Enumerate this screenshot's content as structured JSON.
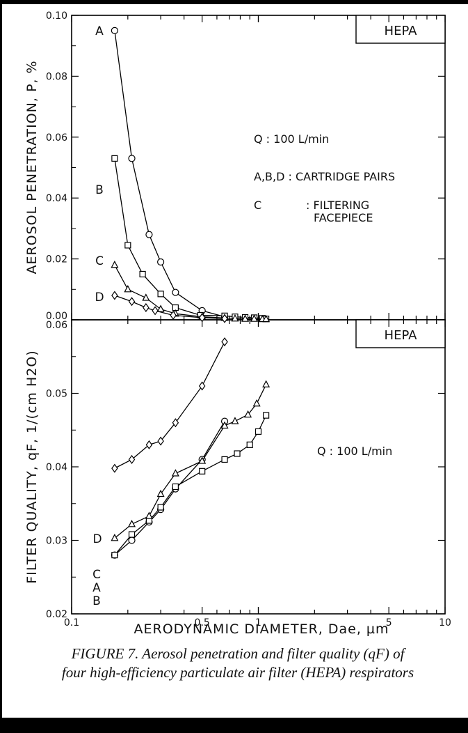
{
  "chart_data": [
    {
      "type": "line",
      "box_label": "HEPA",
      "ylabel": "AEROSOL PENETRATION, P, %",
      "xscale": "log",
      "xlim": [
        0.1,
        10
      ],
      "ylim": [
        0,
        0.1
      ],
      "yticks": [
        "0.00",
        "0.02",
        "0.04",
        "0.06",
        "0.08",
        "0.10"
      ],
      "annotations": [
        "Q : 100 L/min",
        "A,B,D : CARTRIDGE PAIRS",
        "C",
        ": FILTERING",
        "FACEPIECE"
      ],
      "series": [
        {
          "name": "A",
          "marker": "circle",
          "x": [
            0.17,
            0.21,
            0.26,
            0.3,
            0.36,
            0.5,
            0.66
          ],
          "y": [
            0.095,
            0.053,
            0.028,
            0.019,
            0.009,
            0.003,
            0.001
          ]
        },
        {
          "name": "B",
          "marker": "square",
          "x": [
            0.17,
            0.2,
            0.24,
            0.3,
            0.36,
            0.49,
            0.66,
            0.75,
            0.85,
            0.95,
            1.05,
            1.1
          ],
          "y": [
            0.053,
            0.0245,
            0.015,
            0.0085,
            0.004,
            0.0015,
            0.0013,
            0.001,
            0.0008,
            0.0007,
            0.0005,
            0.0003
          ]
        },
        {
          "name": "C",
          "marker": "triangle",
          "x": [
            0.17,
            0.2,
            0.25,
            0.3,
            0.36,
            0.5,
            0.66,
            0.75,
            0.85,
            0.95,
            1.05,
            1.1
          ],
          "y": [
            0.018,
            0.01,
            0.0072,
            0.0035,
            0.002,
            0.001,
            0.0006,
            0.0004,
            0.0003,
            0.0003,
            0.0002,
            0.0002
          ]
        },
        {
          "name": "D",
          "marker": "diamond",
          "x": [
            0.17,
            0.21,
            0.25,
            0.28,
            0.35,
            0.5,
            0.66
          ],
          "y": [
            0.008,
            0.006,
            0.004,
            0.003,
            0.0015,
            0.0007,
            0.0004
          ]
        }
      ]
    },
    {
      "type": "line",
      "box_label": "HEPA",
      "xlabel": "AERODYNAMIC DIAMETER, Dae, µm",
      "ylabel": "FILTER QUALITY, qF, 1/(cm H2O)",
      "xscale": "log",
      "xlim": [
        0.1,
        10
      ],
      "ylim": [
        0.02,
        0.06
      ],
      "xticks": [
        "0.1",
        "0.5",
        "1",
        "5",
        "10"
      ],
      "yticks": [
        "0.02",
        "0.03",
        "0.04",
        "0.05",
        "0.06"
      ],
      "annotations": [
        "Q : 100 L/min"
      ],
      "series": [
        {
          "name": "A",
          "marker": "circle",
          "x": [
            0.17,
            0.21,
            0.26,
            0.3,
            0.36,
            0.5,
            0.66
          ],
          "y": [
            0.028,
            0.03,
            0.0325,
            0.0342,
            0.037,
            0.041,
            0.0462
          ]
        },
        {
          "name": "B",
          "marker": "square",
          "x": [
            0.17,
            0.21,
            0.26,
            0.3,
            0.36,
            0.5,
            0.66,
            0.77,
            0.9,
            1.0,
            1.1
          ],
          "y": [
            0.028,
            0.0308,
            0.0327,
            0.0345,
            0.0373,
            0.0394,
            0.041,
            0.0418,
            0.043,
            0.0448,
            0.047
          ]
        },
        {
          "name": "C",
          "marker": "triangle",
          "x": [
            0.17,
            0.21,
            0.26,
            0.3,
            0.36,
            0.5,
            0.66,
            0.75,
            0.88,
            0.98,
            1.1
          ],
          "y": [
            0.0303,
            0.0322,
            0.0333,
            0.0363,
            0.0391,
            0.0408,
            0.0456,
            0.0462,
            0.0471,
            0.0486,
            0.0512
          ]
        },
        {
          "name": "D",
          "marker": "diamond",
          "x": [
            0.17,
            0.21,
            0.26,
            0.3,
            0.36,
            0.5,
            0.66
          ],
          "y": [
            0.0398,
            0.041,
            0.043,
            0.0435,
            0.046,
            0.051,
            0.057
          ]
        }
      ]
    }
  ],
  "caption": {
    "line1": "FIGURE 7.  Aerosol penetration and filter quality (qF) of",
    "line2": "four high-efficiency particulate air filter (HEPA) respirators"
  }
}
